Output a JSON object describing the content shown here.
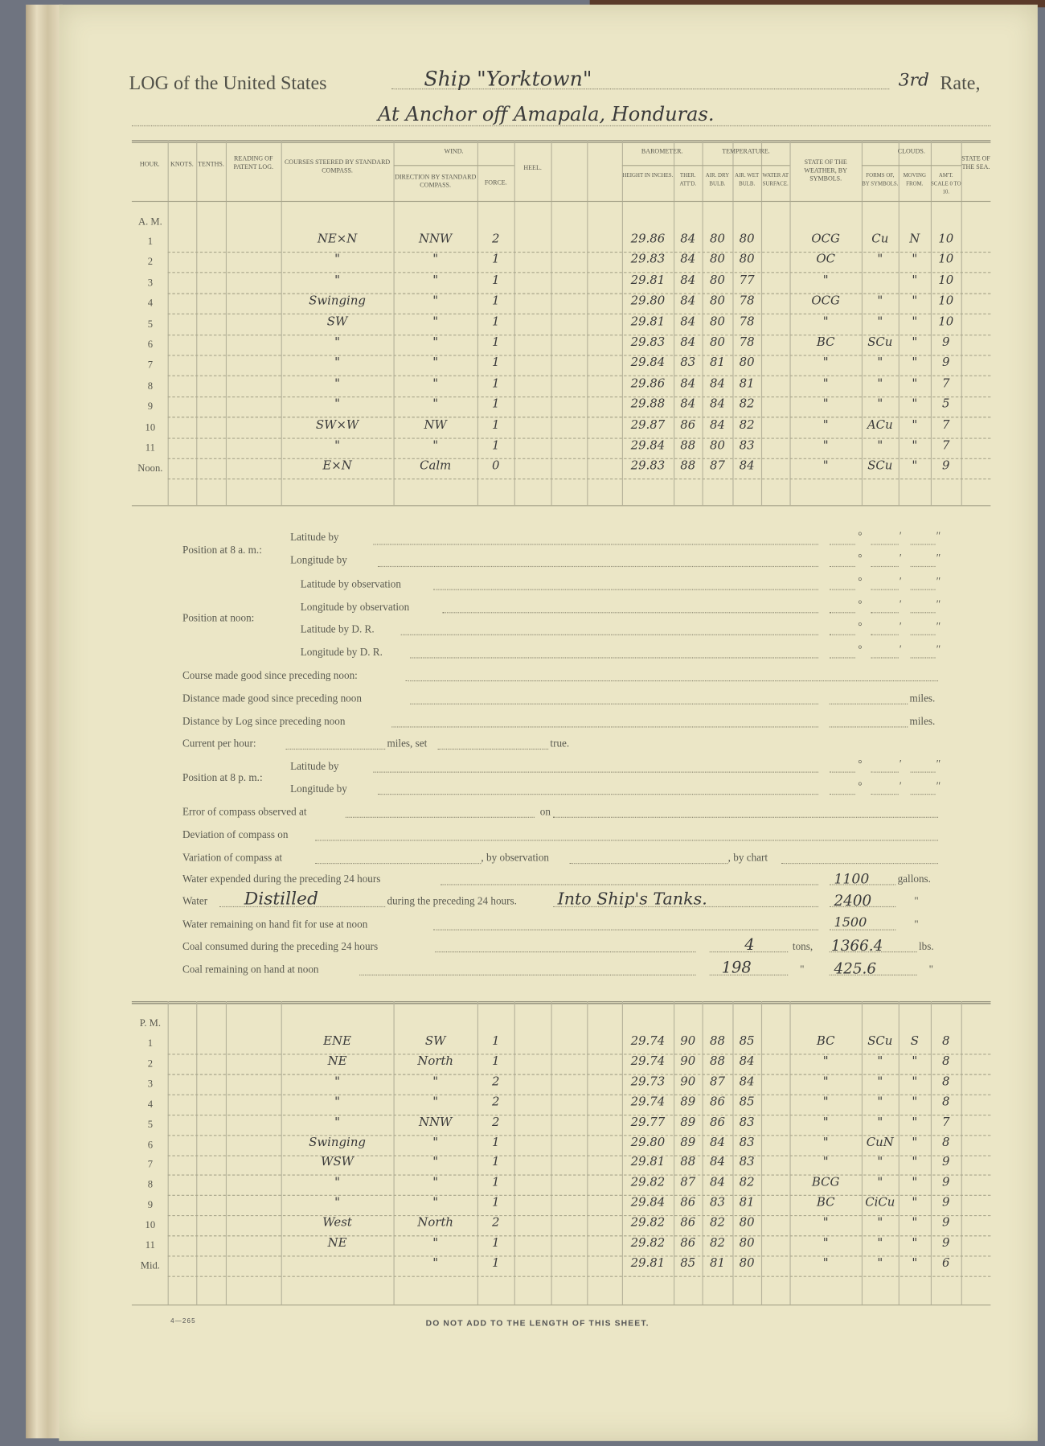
{
  "header": {
    "log_label": "LOG of the United States",
    "vessel": "Ship \"Yorktown\"",
    "rate": "3rd",
    "rate_label": "Rate,",
    "location": "At Anchor off Amapala, Honduras."
  },
  "columns": {
    "hour": "Hour.",
    "knots": "Knots.",
    "tenths": "Tenths.",
    "patent_log": "Reading of Patent Log.",
    "courses": "Courses steered by Standard Compass.",
    "wind": "Wind.",
    "direction": "Direction by Standard Compass.",
    "force": "Force.",
    "heel": "Heel.",
    "barometer": "Barometer.",
    "temperature": "Temperature.",
    "height": "Height in Inches.",
    "ther_att": "Ther. Att'd.",
    "air_dry": "Air. Dry Bulb.",
    "air_wet": "Air. Wet Bulb.",
    "water_surface": "Water at Surface.",
    "weather": "State of the Weather, by Symbols.",
    "clouds": "Clouds.",
    "forms": "Forms of, by Symbols.",
    "moving": "Moving from.",
    "amount": "Am't. Scale 0 to 10.",
    "sea": "State of the Sea."
  },
  "am": {
    "label": "A. M.",
    "rows": [
      {
        "hour": "1",
        "course": "NE×N",
        "dir": "NNW",
        "force": "2",
        "height": "29.86",
        "att": "84",
        "dry": "80",
        "wet": "80",
        "weather": "OCG",
        "forms": "Cu",
        "moving": "N",
        "amount": "10"
      },
      {
        "hour": "2",
        "course": "\"",
        "dir": "\"",
        "force": "1",
        "height": "29.83",
        "att": "84",
        "dry": "80",
        "wet": "80",
        "weather": "OC",
        "forms": "\"",
        "moving": "\"",
        "amount": "10"
      },
      {
        "hour": "3",
        "course": "\"",
        "dir": "\"",
        "force": "1",
        "height": "29.81",
        "att": "84",
        "dry": "80",
        "wet": "77",
        "weather": "\"",
        "forms": "",
        "moving": "\"",
        "amount": "10"
      },
      {
        "hour": "4",
        "course": "Swinging",
        "dir": "\"",
        "force": "1",
        "height": "29.80",
        "att": "84",
        "dry": "80",
        "wet": "78",
        "weather": "OCG",
        "forms": "\"",
        "moving": "\"",
        "amount": "10"
      },
      {
        "hour": "5",
        "course": "SW",
        "dir": "\"",
        "force": "1",
        "height": "29.81",
        "att": "84",
        "dry": "80",
        "wet": "78",
        "weather": "\"",
        "forms": "\"",
        "moving": "\"",
        "amount": "10"
      },
      {
        "hour": "6",
        "course": "\"",
        "dir": "\"",
        "force": "1",
        "height": "29.83",
        "att": "84",
        "dry": "80",
        "wet": "78",
        "weather": "BC",
        "forms": "SCu",
        "moving": "\"",
        "amount": "9"
      },
      {
        "hour": "7",
        "course": "\"",
        "dir": "\"",
        "force": "1",
        "height": "29.84",
        "att": "83",
        "dry": "81",
        "wet": "80",
        "weather": "\"",
        "forms": "\"",
        "moving": "\"",
        "amount": "9"
      },
      {
        "hour": "8",
        "course": "\"",
        "dir": "\"",
        "force": "1",
        "height": "29.86",
        "att": "84",
        "dry": "84",
        "wet": "81",
        "weather": "\"",
        "forms": "\"",
        "moving": "\"",
        "amount": "7"
      },
      {
        "hour": "9",
        "course": "\"",
        "dir": "\"",
        "force": "1",
        "height": "29.88",
        "att": "84",
        "dry": "84",
        "wet": "82",
        "weather": "\"",
        "forms": "\"",
        "moving": "\"",
        "amount": "5"
      },
      {
        "hour": "10",
        "course": "SW×W",
        "dir": "NW",
        "force": "1",
        "height": "29.87",
        "att": "86",
        "dry": "84",
        "wet": "82",
        "weather": "\"",
        "forms": "ACu",
        "moving": "\"",
        "amount": "7"
      },
      {
        "hour": "11",
        "course": "\"",
        "dir": "\"",
        "force": "1",
        "height": "29.84",
        "att": "88",
        "dry": "80",
        "wet": "83",
        "weather": "\"",
        "forms": "\"",
        "moving": "\"",
        "amount": "7"
      },
      {
        "hour": "Noon.",
        "course": "E×N",
        "dir": "Calm",
        "force": "0",
        "height": "29.83",
        "att": "88",
        "dry": "87",
        "wet": "84",
        "weather": "\"",
        "forms": "SCu",
        "moving": "\"",
        "amount": "9"
      }
    ]
  },
  "form": {
    "pos8am": "Position at 8 a. m.:",
    "pos_noon": "Position at noon:",
    "pos8pm": "Position at 8 p. m.:",
    "lat_by": "Latitude by",
    "long_by": "Longitude by",
    "lat_obs": "Latitude by observation",
    "long_obs": "Longitude by observation",
    "lat_dr": "Latitude by D. R.",
    "long_dr": "Longitude by D. R.",
    "course_made": "Course made good since preceding noon:",
    "distance_made": "Distance made good since preceding noon",
    "distance_log": "Distance by Log since preceding noon",
    "miles": "miles.",
    "current": "Current per hour:",
    "miles_set": "miles, set",
    "true": "true.",
    "error": "Error of compass observed at",
    "on": "on",
    "deviation": "Deviation of compass on",
    "variation": "Variation of compass at",
    "by_observation": ", by observation",
    "by_chart": ", by chart",
    "water_expended": "Water expended during the preceding 24 hours",
    "water_expended_value": "1100",
    "gallons": "gallons.",
    "water": "Water",
    "water_kind": "Distilled",
    "during": "during the preceding 24 hours.",
    "water_dest": "Into Ship's Tanks.",
    "water_distilled_value": "2400",
    "ditto": "\"",
    "water_remaining": "Water remaining on hand fit for use at noon",
    "water_remaining_value": "1500",
    "coal_consumed": "Coal consumed during the preceding 24 hours",
    "coal_tons": "4",
    "tons": "tons,",
    "coal_lbs": "1366.4",
    "lbs": "lbs.",
    "coal_remaining": "Coal remaining on hand at noon",
    "coal_rem_tons": "198",
    "coal_rem_lbs": "425.6",
    "deg": "°",
    "min": "′",
    "sec": "″"
  },
  "pm": {
    "label": "P. M.",
    "rows": [
      {
        "hour": "1",
        "course": "ENE",
        "dir": "SW",
        "force": "1",
        "height": "29.74",
        "att": "90",
        "dry": "88",
        "wet": "85",
        "weather": "BC",
        "forms": "SCu",
        "moving": "S",
        "amount": "8"
      },
      {
        "hour": "2",
        "course": "NE",
        "dir": "North",
        "force": "1",
        "height": "29.74",
        "att": "90",
        "dry": "88",
        "wet": "84",
        "weather": "\"",
        "forms": "\"",
        "moving": "\"",
        "amount": "8"
      },
      {
        "hour": "3",
        "course": "\"",
        "dir": "\"",
        "force": "2",
        "height": "29.73",
        "att": "90",
        "dry": "87",
        "wet": "84",
        "weather": "\"",
        "forms": "\"",
        "moving": "\"",
        "amount": "8"
      },
      {
        "hour": "4",
        "course": "\"",
        "dir": "\"",
        "force": "2",
        "height": "29.74",
        "att": "89",
        "dry": "86",
        "wet": "85",
        "weather": "\"",
        "forms": "\"",
        "moving": "\"",
        "amount": "8"
      },
      {
        "hour": "5",
        "course": "\"",
        "dir": "NNW",
        "force": "2",
        "height": "29.77",
        "att": "89",
        "dry": "86",
        "wet": "83",
        "weather": "\"",
        "forms": "\"",
        "moving": "\"",
        "amount": "7"
      },
      {
        "hour": "6",
        "course": "Swinging",
        "dir": "\"",
        "force": "1",
        "height": "29.80",
        "att": "89",
        "dry": "84",
        "wet": "83",
        "weather": "\"",
        "forms": "CuN",
        "moving": "\"",
        "amount": "8"
      },
      {
        "hour": "7",
        "course": "WSW",
        "dir": "\"",
        "force": "1",
        "height": "29.81",
        "att": "88",
        "dry": "84",
        "wet": "83",
        "weather": "\"",
        "forms": "\"",
        "moving": "\"",
        "amount": "9"
      },
      {
        "hour": "8",
        "course": "\"",
        "dir": "\"",
        "force": "1",
        "height": "29.82",
        "att": "87",
        "dry": "84",
        "wet": "82",
        "weather": "BCG",
        "forms": "\"",
        "moving": "\"",
        "amount": "9"
      },
      {
        "hour": "9",
        "course": "\"",
        "dir": "\"",
        "force": "1",
        "height": "29.84",
        "att": "86",
        "dry": "83",
        "wet": "81",
        "weather": "BC",
        "forms": "CiCu",
        "moving": "\"",
        "amount": "9"
      },
      {
        "hour": "10",
        "course": "West",
        "dir": "North",
        "force": "2",
        "height": "29.82",
        "att": "86",
        "dry": "82",
        "wet": "80",
        "weather": "\"",
        "forms": "\"",
        "moving": "\"",
        "amount": "9"
      },
      {
        "hour": "11",
        "course": "NE",
        "dir": "\"",
        "force": "1",
        "height": "29.82",
        "att": "86",
        "dry": "82",
        "wet": "80",
        "weather": "\"",
        "forms": "\"",
        "moving": "\"",
        "amount": "9"
      },
      {
        "hour": "Mid.",
        "course": "",
        "dir": "\"",
        "force": "1",
        "height": "29.81",
        "att": "85",
        "dry": "81",
        "wet": "80",
        "weather": "\"",
        "forms": "\"",
        "moving": "\"",
        "amount": "6"
      }
    ]
  },
  "footer": {
    "form_number": "4—265",
    "notice": "DO NOT ADD TO THE LENGTH OF THIS SHEET."
  },
  "colors": {
    "paper": "#ebe6c6",
    "ink": "#3a3a3a",
    "print": "#5a5a50"
  }
}
